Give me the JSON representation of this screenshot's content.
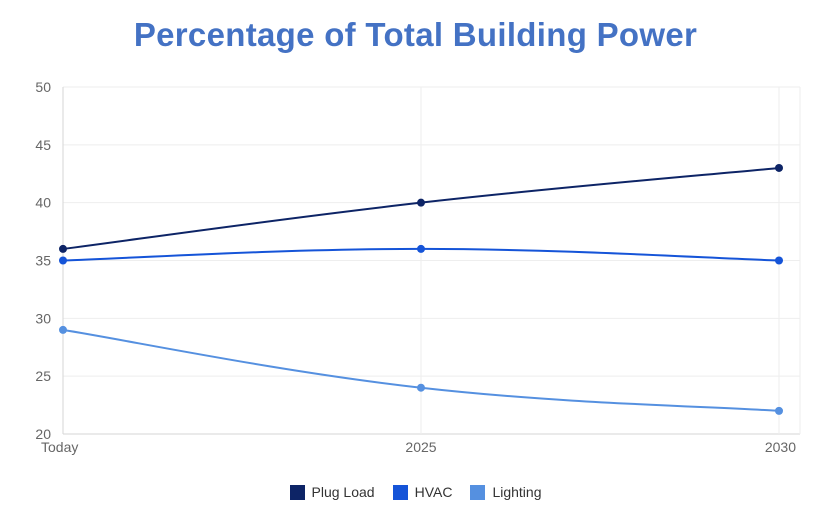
{
  "chart_data": {
    "type": "line",
    "title": "Percentage of Total Building Power",
    "categories": [
      "Today",
      "2025",
      "2030"
    ],
    "ylim": [
      20,
      50
    ],
    "yticks": [
      20,
      25,
      30,
      35,
      40,
      45,
      50
    ],
    "grid": true,
    "legend_position": "bottom",
    "series": [
      {
        "name": "Plug Load",
        "values": [
          36,
          40,
          43
        ],
        "color": "#0d2466"
      },
      {
        "name": "HVAC",
        "values": [
          35,
          36,
          35
        ],
        "color": "#1554d8"
      },
      {
        "name": "Lighting",
        "values": [
          29,
          24,
          22
        ],
        "color": "#5590e0"
      }
    ]
  }
}
